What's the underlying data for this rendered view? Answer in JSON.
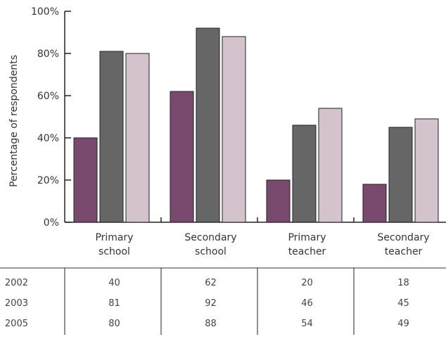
{
  "chart_data": {
    "type": "bar",
    "categories": [
      [
        "Primary",
        "school"
      ],
      [
        "Secondary",
        "school"
      ],
      [
        "Primary",
        "teacher"
      ],
      [
        "Secondary",
        "teacher"
      ]
    ],
    "series": [
      {
        "name": "2002",
        "values": [
          40,
          62,
          20,
          18
        ]
      },
      {
        "name": "2003",
        "values": [
          81,
          92,
          46,
          45
        ]
      },
      {
        "name": "2005",
        "values": [
          80,
          88,
          54,
          49
        ]
      }
    ],
    "ylabel": "Percentage of respondents",
    "ylim": [
      0,
      100
    ],
    "yticks": [
      "0%",
      "20%",
      "40%",
      "60%",
      "80%",
      "100%"
    ],
    "colors": [
      "#7a4a6e",
      "#666666",
      "#d4c3cd"
    ],
    "bar_stroke": "#222222",
    "table_rule_color": "#7a4a6e",
    "legend": "table-below"
  }
}
